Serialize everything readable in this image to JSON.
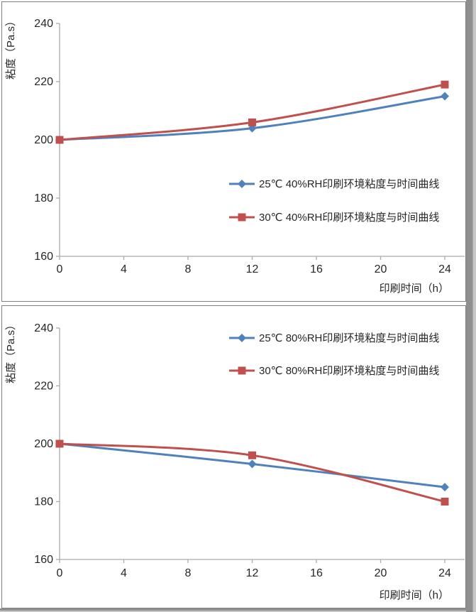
{
  "page": {
    "background_color": "#ffffff",
    "panel_border_color": "#7f7f7f",
    "axis_color": "#ababab",
    "text_color": "#262626",
    "accent_blue": "#4F81BD",
    "accent_red": "#C0504D"
  },
  "chart_data": [
    {
      "type": "line",
      "title": "",
      "xlabel": "印刷时间（h）",
      "ylabel": "粘度（Pa.s）",
      "x": [
        0,
        12,
        24
      ],
      "x_ticks": [
        0,
        4,
        8,
        12,
        16,
        20,
        24
      ],
      "y_ticks": [
        160,
        180,
        200,
        220,
        240
      ],
      "xlim": [
        0,
        24
      ],
      "ylim": [
        160,
        240
      ],
      "grid": false,
      "legend_position": "middle-right-inside",
      "series": [
        {
          "name": "25℃ 40%RH印刷环境粘度与时间曲线",
          "color": "#4F81BD",
          "marker": "diamond",
          "values": [
            200,
            204,
            215
          ]
        },
        {
          "name": "30℃ 40%RH印刷环境粘度与时间曲线",
          "color": "#C0504D",
          "marker": "square",
          "values": [
            200,
            206,
            219
          ]
        }
      ]
    },
    {
      "type": "line",
      "title": "",
      "xlabel": "印刷时间（h）",
      "ylabel": "粘度（Pa.s）",
      "x": [
        0,
        12,
        24
      ],
      "x_ticks": [
        0,
        4,
        8,
        12,
        16,
        20,
        24
      ],
      "y_ticks": [
        160,
        180,
        200,
        220,
        240
      ],
      "xlim": [
        0,
        24
      ],
      "ylim": [
        160,
        240
      ],
      "grid": false,
      "legend_position": "top-inside",
      "series": [
        {
          "name": "25℃ 80%RH印刷环境粘度与时间曲线",
          "color": "#4F81BD",
          "marker": "diamond",
          "values": [
            200,
            193,
            185
          ]
        },
        {
          "name": "30℃ 80%RH印刷环境粘度与时间曲线",
          "color": "#C0504D",
          "marker": "square",
          "values": [
            200,
            196,
            180
          ]
        }
      ]
    }
  ]
}
